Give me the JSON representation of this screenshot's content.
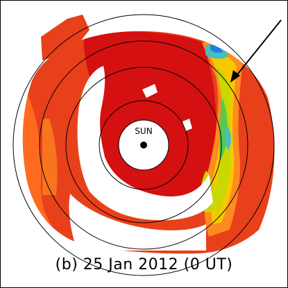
{
  "caption": "(b) 25 Jan 2012 (0 UT)",
  "center_label": "SUN",
  "colors": {
    "background": "#ffffff",
    "red": "#d41010",
    "red_orange": "#e8401a",
    "orange": "#ff6a20",
    "orange_light": "#ff8a20",
    "yellow": "#f8c800",
    "yellow_green": "#c8d800",
    "green": "#58c850",
    "cyan": "#40c0c0",
    "blue": "#2080e0",
    "circle": "#000000"
  }
}
